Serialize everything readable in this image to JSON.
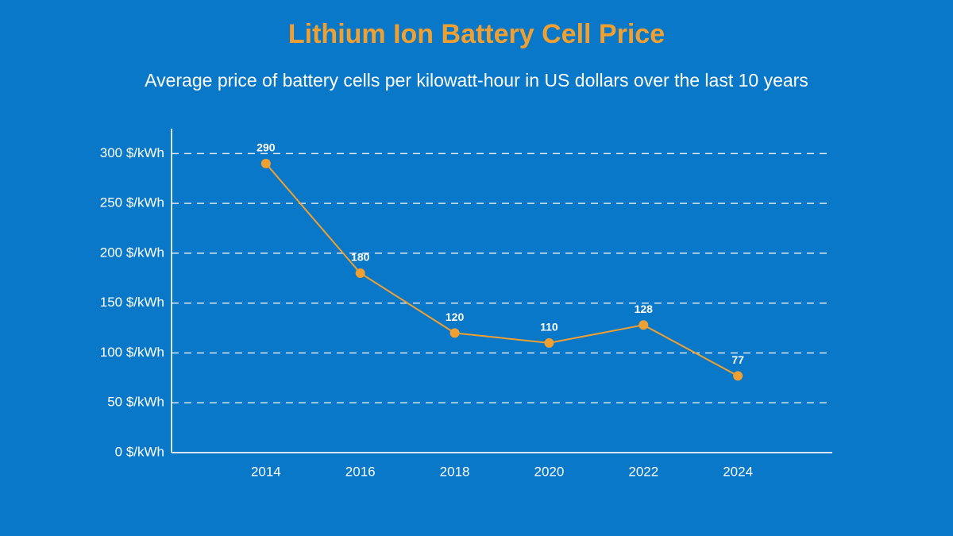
{
  "chart_data": {
    "type": "line",
    "title": "Lithium Ion Battery Cell Price",
    "subtitle": "Average price of battery cells per kilowatt-hour in US dollars over the last 10 years",
    "x": [
      2014,
      2016,
      2018,
      2020,
      2022,
      2024
    ],
    "values": [
      290,
      180,
      120,
      110,
      128,
      77
    ],
    "color": "#f0a030",
    "xlim": [
      2012,
      2026
    ],
    "xticks": [
      2014,
      2016,
      2018,
      2020,
      2022,
      2024
    ],
    "ylim": [
      0,
      325
    ],
    "yticks": [
      {
        "value": 0,
        "label": "0 $/kWh"
      },
      {
        "value": 50,
        "label": "50 $/kWh"
      },
      {
        "value": 100,
        "label": "100 $/kWh"
      },
      {
        "value": 150,
        "label": "150 $/kWh"
      },
      {
        "value": 200,
        "label": "200 $/kWh"
      },
      {
        "value": 250,
        "label": "250 $/kWh"
      },
      {
        "value": 300,
        "label": "300 $/kWh"
      }
    ],
    "grid": true
  }
}
